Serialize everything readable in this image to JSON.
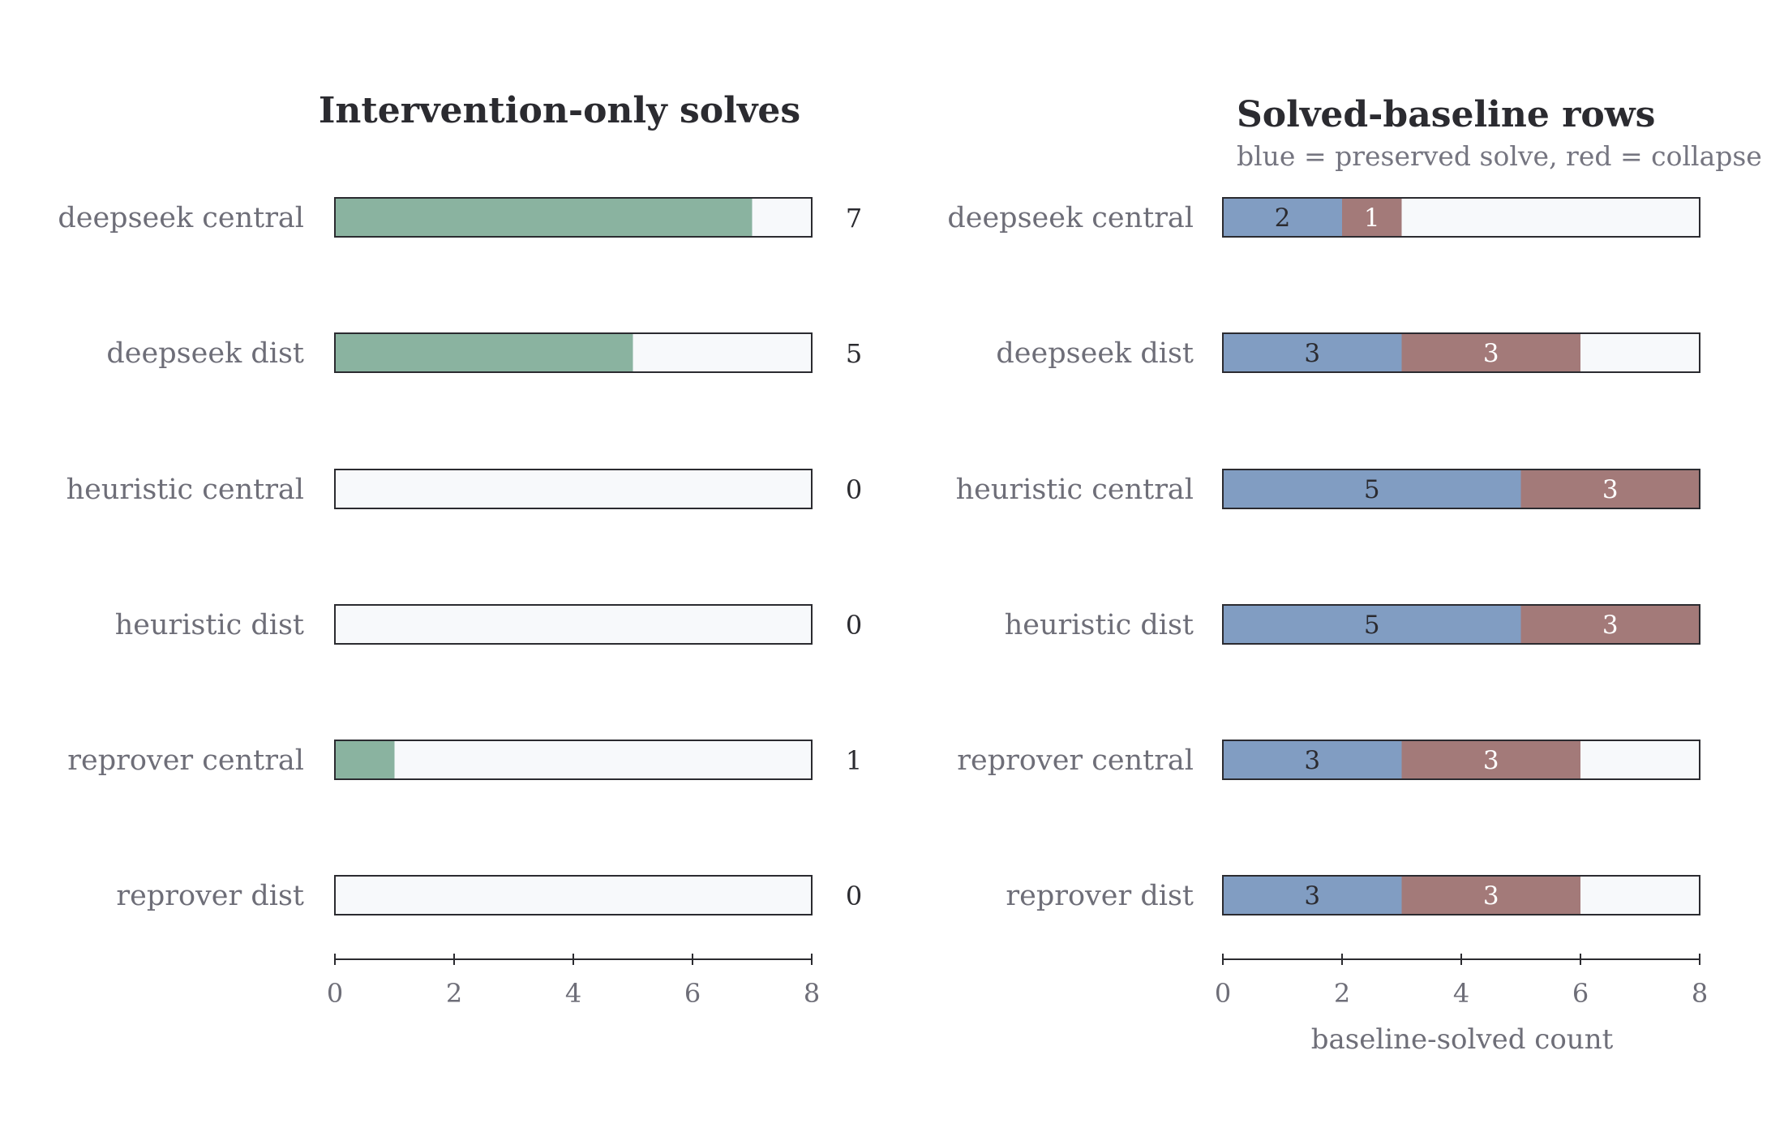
{
  "colors": {
    "intervention": "#8ab3a0",
    "preserved": "#819dc2",
    "collapse": "#a37a79",
    "track": "#f7f9fb",
    "frame": "#2b2b30",
    "label": "#6e6e78",
    "ink": "#2b2b30"
  },
  "chart_data": [
    {
      "type": "bar",
      "orientation": "horizontal",
      "title": "Intervention-only solves",
      "subtitle": "",
      "xlabel": "",
      "ylabel": "",
      "xlim": [
        0,
        8
      ],
      "xticks": [
        0,
        2,
        4,
        6,
        8
      ],
      "grid": false,
      "categories": [
        "deepseek central",
        "deepseek dist",
        "heuristic central",
        "heuristic dist",
        "reprover central",
        "reprover dist"
      ],
      "series": [
        {
          "values": [
            7,
            5,
            0,
            0,
            1,
            0
          ],
          "color": "#8ab3a0"
        }
      ],
      "value_labels": [
        "7",
        "5",
        "0",
        "0",
        "1",
        "0"
      ]
    },
    {
      "type": "bar",
      "orientation": "horizontal",
      "stacked": true,
      "title": "Solved-baseline rows",
      "subtitle": "blue = preserved solve, red = collapse",
      "xlabel": "baseline-solved count",
      "ylabel": "",
      "xlim": [
        0,
        8
      ],
      "xticks": [
        0,
        2,
        4,
        6,
        8
      ],
      "grid": false,
      "categories": [
        "deepseek central",
        "deepseek dist",
        "heuristic central",
        "heuristic dist",
        "reprover central",
        "reprover dist"
      ],
      "series": [
        {
          "values": [
            2,
            3,
            5,
            5,
            3,
            3
          ],
          "color": "#819dc2",
          "label_color": "#2b2b30"
        },
        {
          "values": [
            1,
            3,
            3,
            3,
            3,
            3
          ],
          "color": "#a37a79",
          "label_color": "#ffffff"
        }
      ]
    }
  ]
}
